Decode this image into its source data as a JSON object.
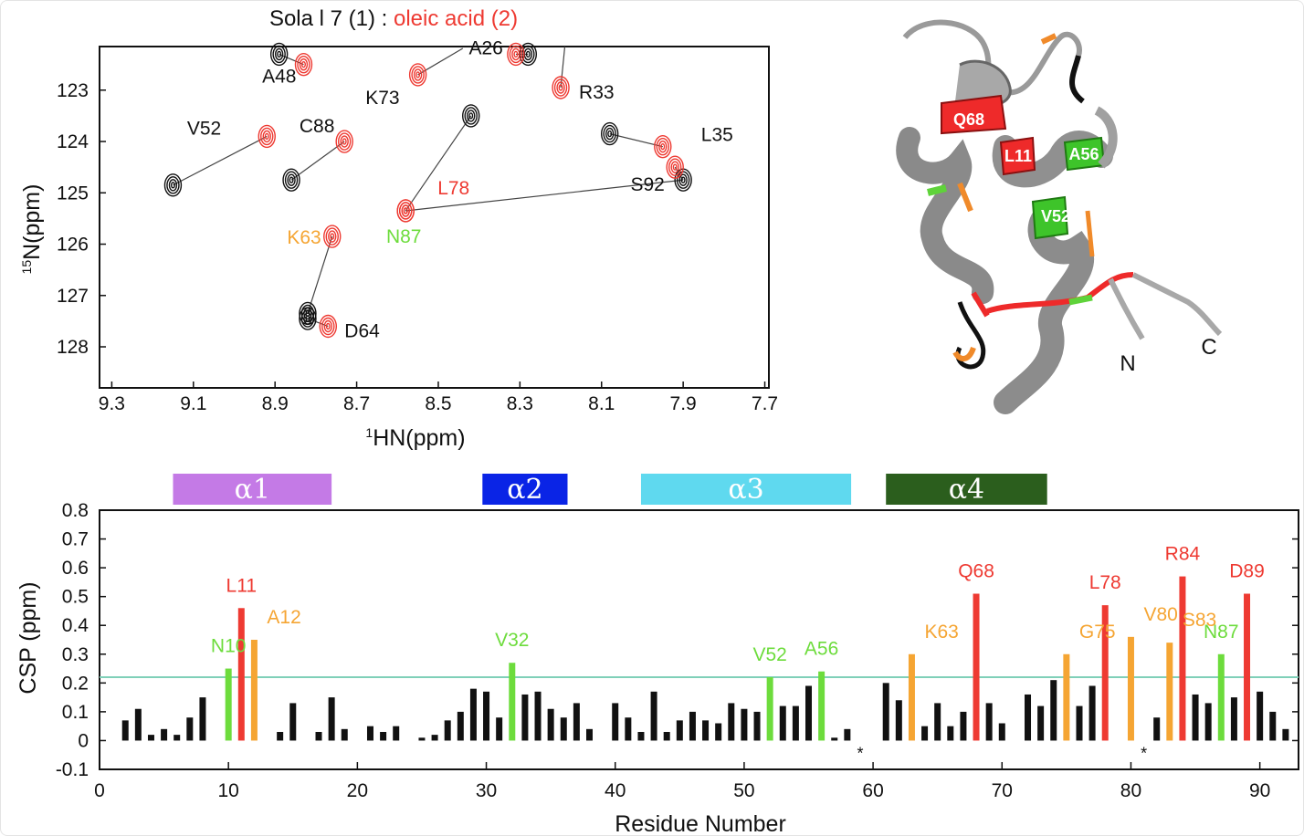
{
  "colors": {
    "black": "#111111",
    "red": "#ee3a32",
    "orange": "#f5a533",
    "green": "#6ddc3c",
    "threshold": "#7fd0b8",
    "alpha1": "#c47ae6",
    "alpha2": "#0a24e6",
    "alpha3": "#5fd9ef",
    "alpha4": "#2b5e1d"
  },
  "chart_data": [
    {
      "type": "scatter",
      "title_black": "Sola l 7 (1) : ",
      "title_red": "oleic acid (2)",
      "xlabel_sup": "1",
      "xlabel": "HN(ppm)",
      "ylabel_sup": "15",
      "ylabel": "N(ppm)",
      "xlim": [
        9.33,
        7.69
      ],
      "ylim": [
        122.15,
        128.8
      ],
      "x_reversed": true,
      "y_reversed": true,
      "xticks": [
        "9.3",
        "9.1",
        "8.9",
        "8.7",
        "8.5",
        "8.3",
        "8.1",
        "7.9",
        "7.7"
      ],
      "yticks": [
        "123",
        "124",
        "125",
        "126",
        "127",
        "128"
      ],
      "series": [
        {
          "name": "Sola l 7 (1)",
          "color": "black"
        },
        {
          "name": "oleic acid (2)",
          "color": "red"
        }
      ],
      "peaks": [
        {
          "label": "A48",
          "label_color": "black",
          "free": [
            8.89,
            122.3
          ],
          "bound": [
            8.83,
            122.5
          ]
        },
        {
          "label": "A26",
          "label_color": "black",
          "free": [
            8.28,
            122.3
          ],
          "bound": [
            8.31,
            122.3
          ]
        },
        {
          "label": "K73",
          "label_color": "black",
          "free": null,
          "bound": [
            8.55,
            122.7
          ]
        },
        {
          "label": "R33",
          "label_color": "black",
          "free": null,
          "bound": [
            8.2,
            122.95
          ]
        },
        {
          "label": "C88",
          "label_color": "black",
          "free": [
            8.86,
            124.75
          ],
          "bound": [
            8.73,
            124.0
          ]
        },
        {
          "label": "V52",
          "label_color": "black",
          "free": [
            9.15,
            124.85
          ],
          "bound": [
            8.92,
            123.9
          ]
        },
        {
          "label": "L35",
          "label_color": "black",
          "free": [
            8.08,
            123.85
          ],
          "bound": [
            7.95,
            124.1
          ]
        },
        {
          "label": "S92",
          "label_color": "black",
          "free": [
            7.9,
            124.75
          ],
          "bound": [
            7.92,
            124.5
          ]
        },
        {
          "label": "L78",
          "label_color": "red",
          "free": [
            8.42,
            123.5
          ],
          "bound": [
            8.58,
            125.35
          ]
        },
        {
          "label": "N87",
          "label_color": "green",
          "free": null,
          "bound": [
            8.58,
            125.35
          ]
        },
        {
          "label": "K63",
          "label_color": "orange",
          "free": [
            8.82,
            127.35
          ],
          "bound": [
            8.76,
            125.85
          ]
        },
        {
          "label": "D64",
          "label_color": "black",
          "free": [
            8.82,
            127.45
          ],
          "bound": [
            8.77,
            127.6
          ]
        }
      ]
    },
    {
      "type": "bar",
      "xlabel": "Residue Number",
      "ylabel": "CSP (ppm)",
      "xlim": [
        0,
        93
      ],
      "ylim": [
        -0.1,
        0.8
      ],
      "xticks": [
        "0",
        "10",
        "20",
        "30",
        "40",
        "50",
        "60",
        "70",
        "80",
        "90"
      ],
      "yticks": [
        "0.8",
        "0.7",
        "0.6",
        "0.5",
        "0.4",
        "0.3",
        "0.2",
        "0.1",
        "0",
        "-0.1"
      ],
      "threshold": 0.22,
      "missing_marker": "*",
      "missing_residues": [
        59,
        81
      ],
      "helices": [
        {
          "label": "α1",
          "start": 5.7,
          "end": 18,
          "color": "alpha1"
        },
        {
          "label": "α2",
          "start": 29.7,
          "end": 36.3,
          "color": "alpha2"
        },
        {
          "label": "α3",
          "start": 42,
          "end": 58.3,
          "color": "alpha3"
        },
        {
          "label": "α4",
          "start": 61,
          "end": 73.5,
          "color": "alpha4"
        }
      ],
      "bars": [
        {
          "x": 2,
          "v": 0.07
        },
        {
          "x": 3,
          "v": 0.11
        },
        {
          "x": 4,
          "v": 0.02
        },
        {
          "x": 5,
          "v": 0.04
        },
        {
          "x": 6,
          "v": 0.02
        },
        {
          "x": 7,
          "v": 0.08
        },
        {
          "x": 8,
          "v": 0.15
        },
        {
          "x": 10,
          "v": 0.25,
          "c": "green",
          "label": "N10"
        },
        {
          "x": 11,
          "v": 0.46,
          "c": "red",
          "label": "L11"
        },
        {
          "x": 12,
          "v": 0.35,
          "c": "orange",
          "label": "A12"
        },
        {
          "x": 14,
          "v": 0.03
        },
        {
          "x": 15,
          "v": 0.13
        },
        {
          "x": 17,
          "v": 0.03
        },
        {
          "x": 18,
          "v": 0.15
        },
        {
          "x": 19,
          "v": 0.04
        },
        {
          "x": 21,
          "v": 0.05
        },
        {
          "x": 22,
          "v": 0.03
        },
        {
          "x": 23,
          "v": 0.05
        },
        {
          "x": 25,
          "v": 0.01
        },
        {
          "x": 26,
          "v": 0.02
        },
        {
          "x": 27,
          "v": 0.07
        },
        {
          "x": 28,
          "v": 0.1
        },
        {
          "x": 29,
          "v": 0.18
        },
        {
          "x": 30,
          "v": 0.17
        },
        {
          "x": 31,
          "v": 0.08
        },
        {
          "x": 32,
          "v": 0.27,
          "c": "green",
          "label": "V32"
        },
        {
          "x": 33,
          "v": 0.16
        },
        {
          "x": 34,
          "v": 0.17
        },
        {
          "x": 35,
          "v": 0.11
        },
        {
          "x": 36,
          "v": 0.08
        },
        {
          "x": 37,
          "v": 0.13
        },
        {
          "x": 38,
          "v": 0.04
        },
        {
          "x": 40,
          "v": 0.13
        },
        {
          "x": 41,
          "v": 0.08
        },
        {
          "x": 42,
          "v": 0.03
        },
        {
          "x": 43,
          "v": 0.17
        },
        {
          "x": 44,
          "v": 0.03
        },
        {
          "x": 45,
          "v": 0.07
        },
        {
          "x": 46,
          "v": 0.1
        },
        {
          "x": 47,
          "v": 0.07
        },
        {
          "x": 48,
          "v": 0.06
        },
        {
          "x": 49,
          "v": 0.13
        },
        {
          "x": 50,
          "v": 0.11
        },
        {
          "x": 51,
          "v": 0.1
        },
        {
          "x": 52,
          "v": 0.22,
          "c": "green",
          "label": "V52"
        },
        {
          "x": 53,
          "v": 0.12
        },
        {
          "x": 54,
          "v": 0.12
        },
        {
          "x": 55,
          "v": 0.19
        },
        {
          "x": 56,
          "v": 0.24,
          "c": "green",
          "label": "A56"
        },
        {
          "x": 57,
          "v": 0.01
        },
        {
          "x": 58,
          "v": 0.04
        },
        {
          "x": 61,
          "v": 0.2
        },
        {
          "x": 62,
          "v": 0.14
        },
        {
          "x": 63,
          "v": 0.3,
          "c": "orange",
          "label": "K63"
        },
        {
          "x": 64,
          "v": 0.05
        },
        {
          "x": 65,
          "v": 0.13
        },
        {
          "x": 66,
          "v": 0.05
        },
        {
          "x": 67,
          "v": 0.1
        },
        {
          "x": 68,
          "v": 0.51,
          "c": "red",
          "label": "Q68"
        },
        {
          "x": 69,
          "v": 0.13
        },
        {
          "x": 70,
          "v": 0.06
        },
        {
          "x": 72,
          "v": 0.16
        },
        {
          "x": 73,
          "v": 0.12
        },
        {
          "x": 74,
          "v": 0.21
        },
        {
          "x": 75,
          "v": 0.3,
          "c": "orange",
          "label": "G75"
        },
        {
          "x": 76,
          "v": 0.12
        },
        {
          "x": 77,
          "v": 0.19
        },
        {
          "x": 78,
          "v": 0.47,
          "c": "red",
          "label": "L78"
        },
        {
          "x": 80,
          "v": 0.36,
          "c": "orange",
          "label": "V80"
        },
        {
          "x": 82,
          "v": 0.08
        },
        {
          "x": 83,
          "v": 0.34,
          "c": "orange",
          "label": "S83"
        },
        {
          "x": 84,
          "v": 0.57,
          "c": "red",
          "label": "R84"
        },
        {
          "x": 85,
          "v": 0.16
        },
        {
          "x": 86,
          "v": 0.13
        },
        {
          "x": 87,
          "v": 0.3,
          "c": "green",
          "label": "N87"
        },
        {
          "x": 88,
          "v": 0.15
        },
        {
          "x": 89,
          "v": 0.51,
          "c": "red",
          "label": "D89"
        },
        {
          "x": 90,
          "v": 0.17
        },
        {
          "x": 91,
          "v": 0.1
        },
        {
          "x": 92,
          "v": 0.04
        }
      ]
    }
  ],
  "structure": {
    "residue_labels": [
      "Q68",
      "L11",
      "A56",
      "V52"
    ],
    "terminus_n": "N",
    "terminus_c": "C"
  }
}
